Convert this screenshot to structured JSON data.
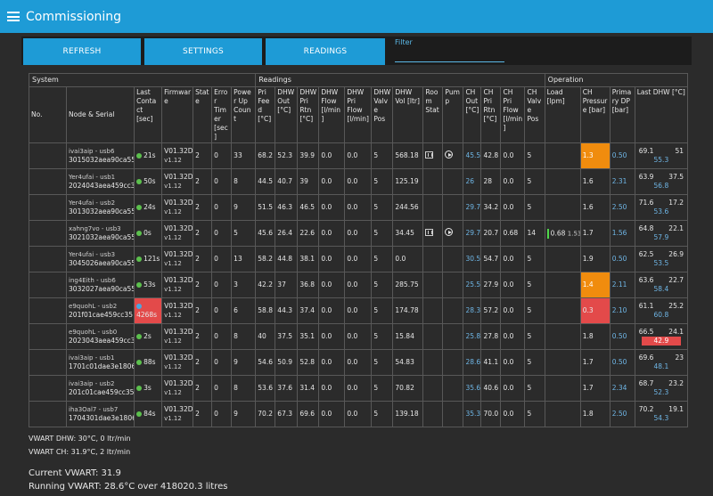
{
  "app": {
    "title": "Commissioning"
  },
  "toolbar": {
    "refresh": "REFRESH",
    "settings": "SETTINGS",
    "readings": "READINGS",
    "filter_label": "Filter"
  },
  "groups": {
    "system": "System",
    "readings": "Readings",
    "operation": "Operation"
  },
  "columns": [
    "No.",
    "Node & Serial",
    "Last Contact [sec]",
    "Firmware",
    "State",
    "Error Timer [sec]",
    "Power Up Count",
    "Pri Feed [°C]",
    "DHW Out [°C]",
    "DHW Pri Rtn [°C]",
    "DHW Flow [l/min]",
    "DHW Pri Flow [l/min]",
    "DHW Valve Pos",
    "DHW Vol [ltr]",
    "Room Stat",
    "Pump",
    "CH Out [°C]",
    "CH Pri Rtn [°C]",
    "CH Pri Flow [l/min]",
    "CH Valve Pos",
    "Load [lpm]",
    "CH Pressure [bar]",
    "Primary DP [bar]",
    "Last DHW [°C]"
  ],
  "rows": [
    {
      "node": "ivai3aip - usb6",
      "serial": "3015032aea90ca55",
      "contact": "21s",
      "fw": "V01.32D",
      "fw_sub": "v1.12",
      "state": "2",
      "err": "0",
      "pu": "33",
      "feed": "68.2",
      "dhwout": "52.3",
      "dhwrtn": "39.9",
      "dhwflow": "0.0",
      "dhwpriflow": "0.0",
      "valve": "5",
      "vol": "568.18",
      "roomstat": true,
      "pump": true,
      "chout": "45.5",
      "chrtn": "42.8",
      "chflow": "0.0",
      "chvalve": "5",
      "load": "",
      "load2": "",
      "pressure": "1.3",
      "pressure_style": "orange",
      "dp": "0.50",
      "ldhw_a": "69.1",
      "ldhw_b": "51",
      "ldhw_c": "55.3",
      "ldhw_red": false,
      "contact_red": false
    },
    {
      "node": "Yer4ufai - usb1",
      "serial": "2024043aea459cc35",
      "contact": "50s",
      "fw": "V01.32D",
      "fw_sub": "v1.12",
      "state": "2",
      "err": "0",
      "pu": "8",
      "feed": "44.5",
      "dhwout": "40.7",
      "dhwrtn": "39",
      "dhwflow": "0.0",
      "dhwpriflow": "0.0",
      "valve": "5",
      "vol": "125.19",
      "roomstat": false,
      "pump": false,
      "chout": "26",
      "chrtn": "28",
      "chflow": "0.0",
      "chvalve": "5",
      "load": "",
      "load2": "",
      "pressure": "1.6",
      "pressure_style": "",
      "dp": "2.31",
      "ldhw_a": "63.9",
      "ldhw_b": "37.5",
      "ldhw_c": "56.8",
      "ldhw_red": false,
      "contact_red": false
    },
    {
      "node": "Yer4ufai - usb2",
      "serial": "3013032aea90ca55",
      "contact": "24s",
      "fw": "V01.32D",
      "fw_sub": "v1.12",
      "state": "2",
      "err": "0",
      "pu": "9",
      "feed": "51.5",
      "dhwout": "46.3",
      "dhwrtn": "46.5",
      "dhwflow": "0.0",
      "dhwpriflow": "0.0",
      "valve": "5",
      "vol": "244.56",
      "roomstat": false,
      "pump": false,
      "chout": "29.7",
      "chrtn": "34.2",
      "chflow": "0.0",
      "chvalve": "5",
      "load": "",
      "load2": "",
      "pressure": "1.6",
      "pressure_style": "",
      "dp": "2.50",
      "ldhw_a": "71.6",
      "ldhw_b": "17.2",
      "ldhw_c": "53.6",
      "ldhw_red": false,
      "contact_red": false
    },
    {
      "node": "xahng7vo - usb3",
      "serial": "3021032aea90ca55",
      "contact": "0s",
      "fw": "V01.32D",
      "fw_sub": "v1.12",
      "state": "2",
      "err": "0",
      "pu": "5",
      "feed": "45.6",
      "dhwout": "26.4",
      "dhwrtn": "22.6",
      "dhwflow": "0.0",
      "dhwpriflow": "0.0",
      "valve": "5",
      "vol": "34.45",
      "roomstat": true,
      "pump": true,
      "chout": "29.7",
      "chrtn": "20.7",
      "chflow": "0.68",
      "chvalve": "14",
      "load": "0.68",
      "load2": "1.53",
      "pressure": "1.7",
      "pressure_style": "",
      "dp": "1.56",
      "ldhw_a": "64.8",
      "ldhw_b": "22.1",
      "ldhw_c": "57.9",
      "ldhw_red": false,
      "contact_red": false
    },
    {
      "node": "Yer4ufai - usb3",
      "serial": "3045026aea90ca55",
      "contact": "121s",
      "fw": "V01.32D",
      "fw_sub": "v1.12",
      "state": "2",
      "err": "0",
      "pu": "13",
      "feed": "58.2",
      "dhwout": "44.8",
      "dhwrtn": "38.1",
      "dhwflow": "0.0",
      "dhwpriflow": "0.0",
      "valve": "5",
      "vol": "0.0",
      "roomstat": false,
      "pump": false,
      "chout": "30.5",
      "chrtn": "54.7",
      "chflow": "0.0",
      "chvalve": "5",
      "load": "",
      "load2": "",
      "pressure": "1.9",
      "pressure_style": "",
      "dp": "0.50",
      "ldhw_a": "62.5",
      "ldhw_b": "26.9",
      "ldhw_c": "53.5",
      "ldhw_red": false,
      "contact_red": false
    },
    {
      "node": "ing4Eith - usb6",
      "serial": "3032027aea90ca55",
      "contact": "53s",
      "fw": "V01.32D",
      "fw_sub": "v1.12",
      "state": "2",
      "err": "0",
      "pu": "3",
      "feed": "42.2",
      "dhwout": "37",
      "dhwrtn": "36.8",
      "dhwflow": "0.0",
      "dhwpriflow": "0.0",
      "valve": "5",
      "vol": "285.75",
      "roomstat": false,
      "pump": false,
      "chout": "25.5",
      "chrtn": "27.9",
      "chflow": "0.0",
      "chvalve": "5",
      "load": "",
      "load2": "",
      "pressure": "1.4",
      "pressure_style": "orange",
      "dp": "2.11",
      "ldhw_a": "63.6",
      "ldhw_b": "22.7",
      "ldhw_c": "58.4",
      "ldhw_red": false,
      "contact_red": false
    },
    {
      "node": "e9quohL - usb2",
      "serial": "201f01cae459cc35",
      "contact": "4268s",
      "fw": "V01.32D",
      "fw_sub": "v1.12",
      "state": "2",
      "err": "0",
      "pu": "6",
      "feed": "58.8",
      "dhwout": "44.3",
      "dhwrtn": "37.4",
      "dhwflow": "0.0",
      "dhwpriflow": "0.0",
      "valve": "5",
      "vol": "174.78",
      "roomstat": false,
      "pump": false,
      "chout": "28.3",
      "chrtn": "57.2",
      "chflow": "0.0",
      "chvalve": "5",
      "load": "",
      "load2": "",
      "pressure": "0.3",
      "pressure_style": "red",
      "dp": "2.10",
      "ldhw_a": "61.1",
      "ldhw_b": "25.2",
      "ldhw_c": "60.8",
      "ldhw_red": false,
      "contact_red": true
    },
    {
      "node": "e9quohL - usb0",
      "serial": "2023043aea459cc35",
      "contact": "2s",
      "fw": "V01.32D",
      "fw_sub": "v1.12",
      "state": "2",
      "err": "0",
      "pu": "8",
      "feed": "40",
      "dhwout": "37.5",
      "dhwrtn": "35.1",
      "dhwflow": "0.0",
      "dhwpriflow": "0.0",
      "valve": "5",
      "vol": "15.84",
      "roomstat": false,
      "pump": false,
      "chout": "25.8",
      "chrtn": "27.8",
      "chflow": "0.0",
      "chvalve": "5",
      "load": "",
      "load2": "",
      "pressure": "1.8",
      "pressure_style": "",
      "dp": "0.50",
      "ldhw_a": "66.5",
      "ldhw_b": "24.1",
      "ldhw_c": "42.9",
      "ldhw_red": true,
      "contact_red": false
    },
    {
      "node": "ivai3aip - usb1",
      "serial": "1701c01dae3e1806",
      "contact": "88s",
      "fw": "V01.32D",
      "fw_sub": "v1.12",
      "state": "2",
      "err": "0",
      "pu": "9",
      "feed": "54.6",
      "dhwout": "50.9",
      "dhwrtn": "52.8",
      "dhwflow": "0.0",
      "dhwpriflow": "0.0",
      "valve": "5",
      "vol": "54.83",
      "roomstat": false,
      "pump": false,
      "chout": "28.6",
      "chrtn": "41.1",
      "chflow": "0.0",
      "chvalve": "5",
      "load": "",
      "load2": "",
      "pressure": "1.7",
      "pressure_style": "",
      "dp": "0.50",
      "ldhw_a": "69.6",
      "ldhw_b": "23",
      "ldhw_c": "48.1",
      "ldhw_red": false,
      "contact_red": false
    },
    {
      "node": "ivai3aip - usb2",
      "serial": "201c01cae459cc35",
      "contact": "3s",
      "fw": "V01.32D",
      "fw_sub": "v1.12",
      "state": "2",
      "err": "0",
      "pu": "8",
      "feed": "53.6",
      "dhwout": "37.6",
      "dhwrtn": "31.4",
      "dhwflow": "0.0",
      "dhwpriflow": "0.0",
      "valve": "5",
      "vol": "70.82",
      "roomstat": false,
      "pump": false,
      "chout": "35.6",
      "chrtn": "40.6",
      "chflow": "0.0",
      "chvalve": "5",
      "load": "",
      "load2": "",
      "pressure": "1.7",
      "pressure_style": "",
      "dp": "2.34",
      "ldhw_a": "68.7",
      "ldhw_b": "23.2",
      "ldhw_c": "52.3",
      "ldhw_red": false,
      "contact_red": false
    },
    {
      "node": "iha3Oal7 - usb7",
      "serial": "1704301dae3e1806",
      "contact": "84s",
      "fw": "V01.32D",
      "fw_sub": "v1.12",
      "state": "2",
      "err": "0",
      "pu": "9",
      "feed": "70.2",
      "dhwout": "67.3",
      "dhwrtn": "69.6",
      "dhwflow": "0.0",
      "dhwpriflow": "0.0",
      "valve": "5",
      "vol": "139.18",
      "roomstat": false,
      "pump": false,
      "chout": "35.3",
      "chrtn": "70.0",
      "chflow": "0.0",
      "chvalve": "5",
      "load": "",
      "load2": "",
      "pressure": "1.8",
      "pressure_style": "",
      "dp": "2.50",
      "ldhw_a": "70.2",
      "ldhw_b": "19.1",
      "ldhw_c": "54.3",
      "ldhw_red": false,
      "contact_red": false
    }
  ],
  "footer": {
    "vwart_dhw": "VWART DHW: 30°C, 0 ltr/min",
    "vwart_ch": "VWART CH: 31.9°C, 2 ltr/min",
    "current_vwart": "Current VWART: 31.9",
    "running_vwart": "Running VWART: 28.6°C over 418020.3 litres"
  },
  "colors": {
    "appbar": "#1e9bd6",
    "ok_dot": "#5cc04d",
    "alert_red": "#e34a4a",
    "warn_orange": "#f08c0e",
    "blue_text": "#6fb6e6"
  }
}
